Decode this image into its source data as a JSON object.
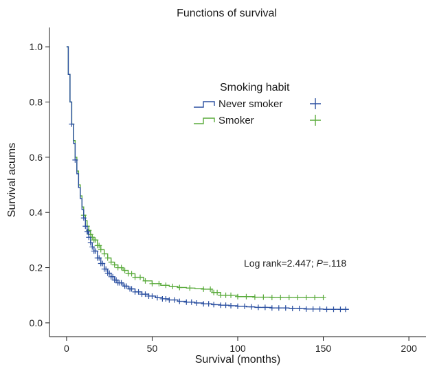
{
  "chart_data": {
    "type": "line",
    "title": "Functions of survival",
    "xlabel": "Survival (months)",
    "ylabel": "Survival acums",
    "xlim": [
      -10,
      210
    ],
    "ylim": [
      -0.05,
      1.07
    ],
    "x_ticks": [
      0,
      50,
      100,
      150,
      200
    ],
    "y_ticks": [
      0.0,
      0.2,
      0.4,
      0.6,
      0.8,
      1.0
    ],
    "x_tick_labels": [
      "0",
      "50",
      "100",
      "150",
      "200"
    ],
    "y_tick_labels": [
      "0.0",
      "0.2",
      "0.4",
      "0.6",
      "0.8",
      "1.0"
    ],
    "grid": false,
    "legend": {
      "title": "Smoking habit",
      "position": "top-right"
    },
    "annotation": {
      "prefix": "Log rank=2.447; ",
      "p_label": "P",
      "p_value": "=.118"
    },
    "series": [
      {
        "name": "Never smoker",
        "color": "#2a4fa0",
        "x": [
          0,
          1,
          2,
          3,
          4,
          5,
          6,
          7,
          8,
          9,
          10,
          11,
          12,
          13,
          14,
          15,
          16,
          18,
          20,
          22,
          24,
          26,
          28,
          30,
          33,
          36,
          40,
          44,
          48,
          52,
          56,
          60,
          65,
          70,
          75,
          80,
          85,
          90,
          95,
          100,
          105,
          110,
          120,
          130,
          140,
          150,
          160,
          165
        ],
        "y": [
          1.0,
          0.9,
          0.8,
          0.72,
          0.65,
          0.59,
          0.54,
          0.49,
          0.45,
          0.41,
          0.38,
          0.35,
          0.33,
          0.31,
          0.29,
          0.275,
          0.26,
          0.235,
          0.215,
          0.195,
          0.18,
          0.167,
          0.155,
          0.145,
          0.133,
          0.123,
          0.112,
          0.104,
          0.097,
          0.091,
          0.087,
          0.083,
          0.078,
          0.075,
          0.072,
          0.069,
          0.066,
          0.064,
          0.062,
          0.06,
          0.058,
          0.056,
          0.054,
          0.052,
          0.05,
          0.049,
          0.049,
          0.049
        ],
        "censored_x": [
          3,
          5,
          10,
          11,
          12,
          12.5,
          13,
          14,
          15,
          16,
          17,
          18,
          19,
          20,
          21,
          22,
          23,
          24,
          25,
          26,
          27,
          28,
          29,
          30,
          31,
          32,
          34,
          35,
          37,
          38,
          40,
          42,
          44,
          46,
          48,
          50,
          53,
          56,
          58,
          60,
          63,
          66,
          70,
          73,
          76,
          80,
          83,
          86,
          90,
          93,
          96,
          100,
          104,
          108,
          112,
          116,
          120,
          124,
          128,
          132,
          136,
          140,
          144,
          148,
          152,
          156,
          160,
          163
        ]
      },
      {
        "name": "Smoker",
        "color": "#5aab3c",
        "x": [
          0,
          1,
          2,
          3,
          4,
          5,
          6,
          7,
          8,
          9,
          10,
          11,
          12,
          13,
          14,
          15,
          16,
          18,
          20,
          22,
          24,
          26,
          28,
          30,
          33,
          36,
          40,
          45,
          50,
          55,
          60,
          65,
          70,
          75,
          80,
          85,
          90,
          100,
          110,
          120,
          130,
          140,
          150
        ],
        "y": [
          1.0,
          0.9,
          0.8,
          0.72,
          0.66,
          0.6,
          0.55,
          0.5,
          0.46,
          0.42,
          0.39,
          0.37,
          0.35,
          0.335,
          0.32,
          0.31,
          0.3,
          0.28,
          0.265,
          0.25,
          0.235,
          0.22,
          0.21,
          0.2,
          0.19,
          0.178,
          0.165,
          0.152,
          0.142,
          0.136,
          0.132,
          0.128,
          0.126,
          0.124,
          0.122,
          0.11,
          0.1,
          0.095,
          0.093,
          0.092,
          0.092,
          0.092,
          0.092
        ],
        "censored_x": [
          10,
          12,
          13,
          14,
          15,
          16,
          17,
          18,
          19,
          20,
          22,
          24,
          26,
          28,
          30,
          32,
          34,
          36,
          38,
          40,
          43,
          46,
          50,
          54,
          58,
          62,
          66,
          72,
          80,
          84,
          86,
          88,
          90,
          93,
          96,
          100,
          105,
          110,
          115,
          120,
          125,
          130,
          135,
          140,
          145,
          150
        ]
      }
    ]
  }
}
